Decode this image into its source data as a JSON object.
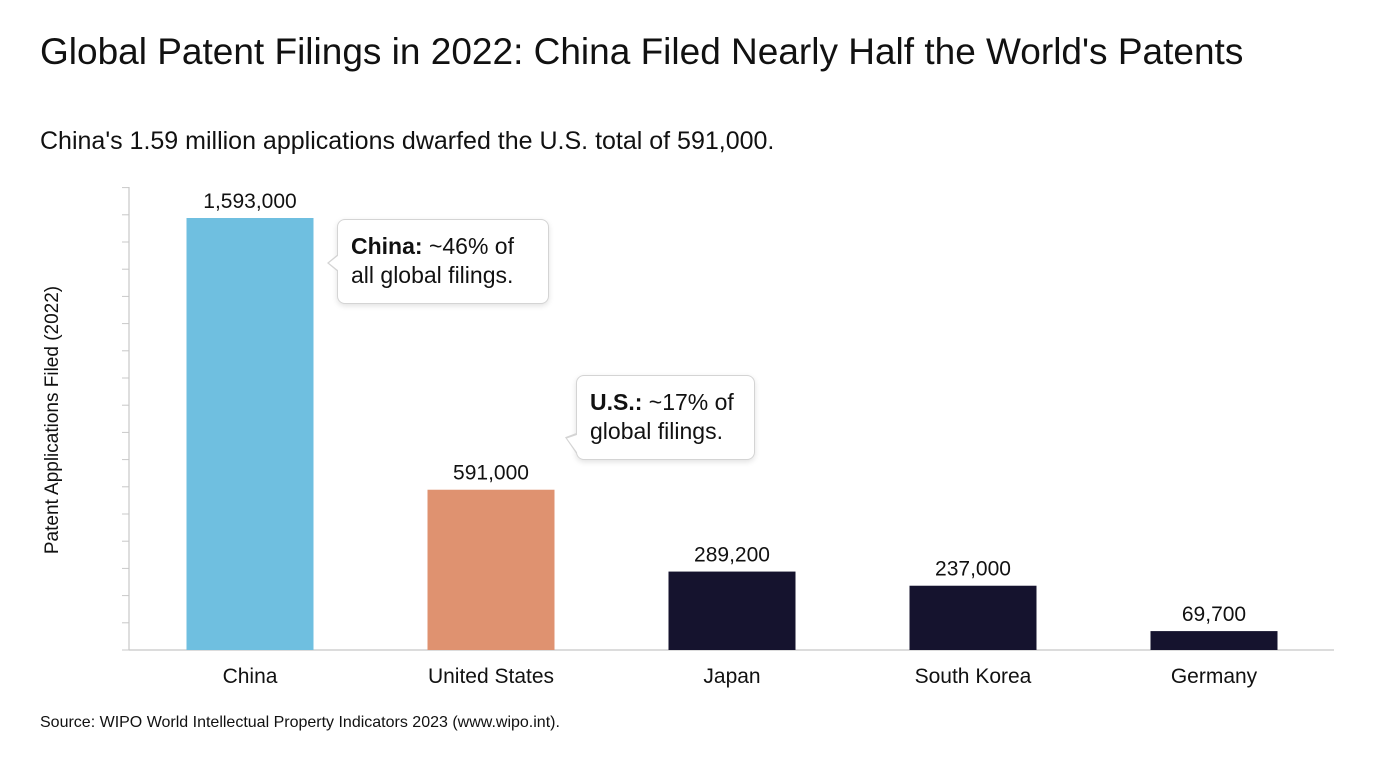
{
  "header": {
    "title": "Global Patent Filings in 2022: China Filed Nearly Half the World's Patents",
    "subtitle": "China's 1.59 million applications dwarfed the U.S. total of 591,000."
  },
  "footer": {
    "source": "Source: WIPO World Intellectual Property Indicators 2023 (www.wipo.int)."
  },
  "annotations": {
    "china": {
      "lead": "China:",
      "text": " ~46% of all global filings."
    },
    "us": {
      "lead": "U.S.:",
      "text": " ~17% of global filings."
    }
  },
  "colors": {
    "china": "#6fbfe0",
    "us": "#df9270",
    "others": "#15132e",
    "axis": "#c8c8c8"
  },
  "chart_data": {
    "type": "bar",
    "title": "Global Patent Filings in 2022: China Filed Nearly Half the World's Patents",
    "subtitle": "China's 1.59 million applications dwarfed the U.S. total of 591,000.",
    "xlabel": "",
    "ylabel": "Patent Applications Filed (2022)",
    "categories": [
      "China",
      "United States",
      "Japan",
      "South Korea",
      "Germany"
    ],
    "values": [
      1593000,
      591000,
      289200,
      237000,
      69700
    ],
    "value_labels": [
      "1,593,000",
      "591,000",
      "289,200",
      "237,000",
      "69,700"
    ],
    "bar_colors": [
      "#6fbfe0",
      "#df9270",
      "#15132e",
      "#15132e",
      "#15132e"
    ],
    "ylim": [
      0,
      1700000
    ],
    "grid": false,
    "y_tick_labels_shown": false
  }
}
